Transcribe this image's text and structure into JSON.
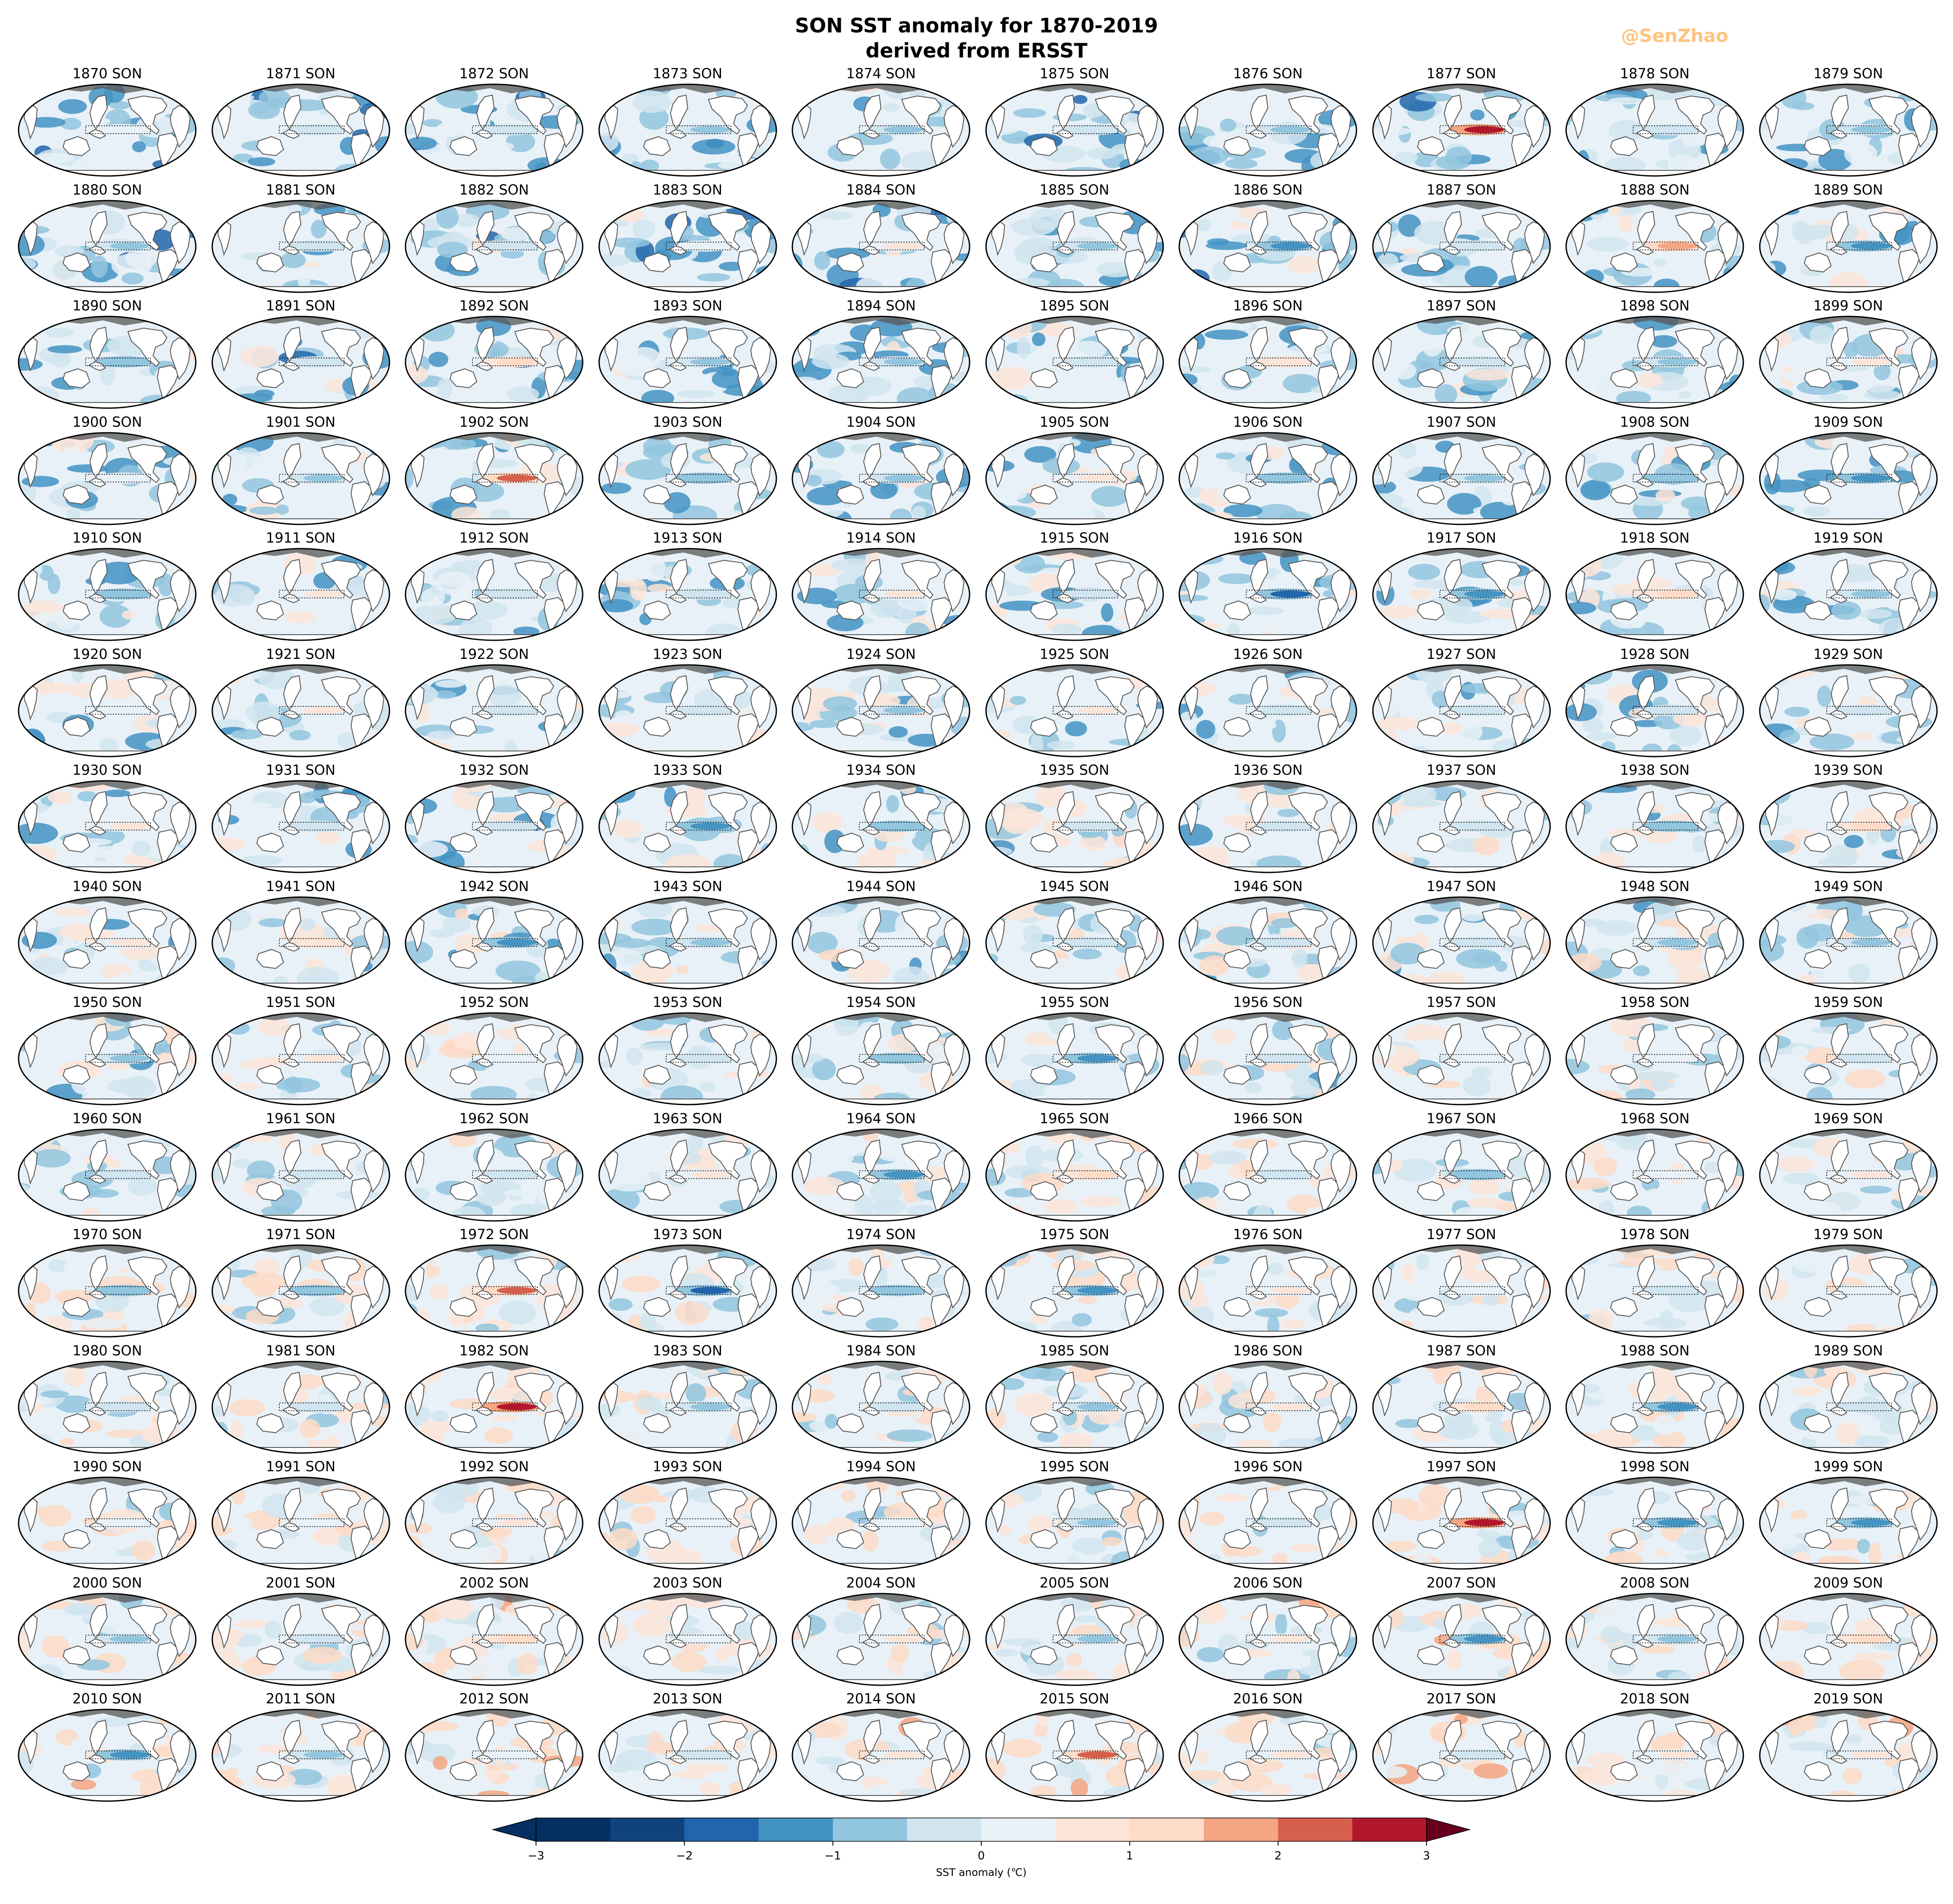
{
  "header": {
    "title_line1": "SON SST anomaly for 1870-2019",
    "title_line2": "derived from ERSST",
    "watermark": "@SenZhao"
  },
  "chart_data": {
    "type": "heatmap",
    "title": "SON SST anomaly for 1870-2019",
    "subtitle": "derived from ERSST",
    "layout_cols": 10,
    "years": [
      1870,
      1871,
      1872,
      1873,
      1874,
      1875,
      1876,
      1877,
      1878,
      1879,
      1880,
      1881,
      1882,
      1883,
      1884,
      1885,
      1886,
      1887,
      1888,
      1889,
      1890,
      1891,
      1892,
      1893,
      1894,
      1895,
      1896,
      1897,
      1898,
      1899,
      1900,
      1901,
      1902,
      1903,
      1904,
      1905,
      1906,
      1907,
      1908,
      1909,
      1910,
      1911,
      1912,
      1913,
      1914,
      1915,
      1916,
      1917,
      1918,
      1919,
      1920,
      1921,
      1922,
      1923,
      1924,
      1925,
      1926,
      1927,
      1928,
      1929,
      1930,
      1931,
      1932,
      1933,
      1934,
      1935,
      1936,
      1937,
      1938,
      1939,
      1940,
      1941,
      1942,
      1943,
      1944,
      1945,
      1946,
      1947,
      1948,
      1949,
      1950,
      1951,
      1952,
      1953,
      1954,
      1955,
      1956,
      1957,
      1958,
      1959,
      1960,
      1961,
      1962,
      1963,
      1964,
      1965,
      1966,
      1967,
      1968,
      1969,
      1970,
      1971,
      1972,
      1973,
      1974,
      1975,
      1976,
      1977,
      1978,
      1979,
      1980,
      1981,
      1982,
      1983,
      1984,
      1985,
      1986,
      1987,
      1988,
      1989,
      1990,
      1991,
      1992,
      1993,
      1994,
      1995,
      1996,
      1997,
      1998,
      1999,
      2000,
      2001,
      2002,
      2003,
      2004,
      2005,
      2006,
      2007,
      2008,
      2009,
      2010,
      2011,
      2012,
      2013,
      2014,
      2015,
      2016,
      2017,
      2018,
      2019
    ],
    "season": "SON",
    "enso_box_anomaly": [
      0,
      -0.3,
      -0.3,
      -0.8,
      -0.7,
      -0.3,
      -0.8,
      2.7,
      -0.3,
      -0.6,
      -0.6,
      -0.4,
      -0.5,
      0.3,
      0.5,
      -0.7,
      -1.4,
      -0.4,
      1.8,
      -1.2,
      -1.0,
      -0.3,
      1.0,
      -0.8,
      -0.6,
      -0.5,
      0.9,
      -0.4,
      -0.6,
      0.7,
      0.3,
      -0.8,
      2.0,
      -1.0,
      -0.6,
      0.7,
      -0.9,
      -0.6,
      -1.0,
      -1.3,
      -1.0,
      0.8,
      -0.4,
      -0.3,
      0.7,
      -0.5,
      -1.6,
      -1.4,
      1.2,
      -0.6,
      0.3,
      0.5,
      -0.3,
      -0.2,
      -0.6,
      0.7,
      -0.3,
      -0.2,
      -0.4,
      -0.3,
      0.7,
      -0.2,
      -0.2,
      -1.3,
      -0.9,
      -0.5,
      -0.3,
      -0.3,
      -1.0,
      1.1,
      0.8,
      0.9,
      -1.5,
      -0.7,
      0.4,
      -0.4,
      -0.3,
      -0.2,
      -0.7,
      -0.7,
      -0.7,
      0.5,
      0.3,
      -0.4,
      -0.9,
      -1.5,
      -0.5,
      0.4,
      0.2,
      -0.2,
      -0.3,
      -0.3,
      -0.3,
      0.6,
      -1.1,
      1.3,
      -0.3,
      -0.9,
      0.3,
      0.5,
      -0.9,
      -0.9,
      2.0,
      -1.6,
      -0.9,
      -1.4,
      0.5,
      0.4,
      -0.3,
      0.3,
      -0.2,
      -0.3,
      2.5,
      -0.7,
      -0.5,
      -0.6,
      0.7,
      1.4,
      -1.3,
      -0.3,
      0.3,
      0.4,
      0.6,
      0.2,
      0.4,
      -0.6,
      -0.5,
      2.9,
      -1.1,
      -1.1,
      -0.6,
      -0.3,
      1.1,
      0.3,
      0.5,
      -0.8,
      0.8,
      -1.2,
      -0.8,
      1.1,
      -1.2,
      -0.8,
      0.3,
      -0.2,
      0.6,
      2.4,
      0.5,
      -0.5,
      0.5,
      0.6
    ],
    "colorbar": {
      "label": "SST anomaly (℃)",
      "range": [
        -3,
        3
      ],
      "extend": "both",
      "ticks": [
        -3,
        -2,
        -1,
        0,
        1,
        2,
        3
      ],
      "tick_labels": [
        "−3",
        "−2",
        "−1",
        "0",
        "1",
        "2",
        "3"
      ],
      "levels": [
        -3.0,
        -2.5,
        -2.0,
        -1.5,
        -1.0,
        -0.5,
        0.0,
        0.5,
        1.0,
        1.5,
        2.0,
        2.5,
        3.0
      ],
      "colors": [
        "#053061",
        "#0f437b",
        "#2166ac",
        "#4393c3",
        "#92c5de",
        "#d1e5f0",
        "#e8f1f7",
        "#fbe5d9",
        "#fddbc7",
        "#f4a582",
        "#d6604d",
        "#b2182b",
        "#67001f"
      ],
      "extend_colors": {
        "under": "#053061",
        "over": "#67001f"
      }
    },
    "map_colors": {
      "land": "#ffffff",
      "coast": "#555555",
      "border": "#000000",
      "ice": "#555555"
    }
  }
}
